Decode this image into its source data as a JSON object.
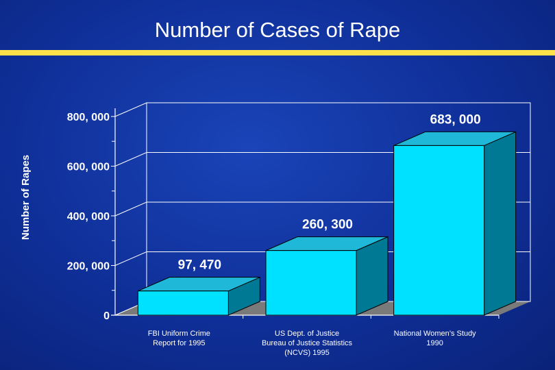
{
  "colors": {
    "background": "#0f2f98",
    "title_rule": "#ffe24a",
    "bar_front": "#00e0ff",
    "bar_top": "#1fb8d8",
    "bar_side": "#007a94",
    "axis": "#ffffff",
    "floor": "#7a7a7a"
  },
  "chart_data": {
    "type": "bar",
    "title": "Number of Cases of Rape",
    "ylabel": "Number of Rapes",
    "xlabel": "",
    "ylim": [
      0,
      800000
    ],
    "yticks": [
      0,
      200000,
      400000,
      600000,
      800000
    ],
    "ytick_labels": [
      "0",
      "200, 000",
      "400, 000",
      "600, 000",
      "800, 000"
    ],
    "categories": [
      [
        "FBI Uniform Crime",
        "Report for 1995"
      ],
      [
        "US Dept. of Justice",
        "Bureau of Justice Statistics",
        "(NCVS) 1995"
      ],
      [
        "National Women’s Study",
        "1990"
      ]
    ],
    "values": [
      97470,
      260300,
      683000
    ],
    "data_labels": [
      "97, 470",
      "260, 300",
      "683, 000"
    ],
    "grid": true,
    "legend": "none"
  }
}
